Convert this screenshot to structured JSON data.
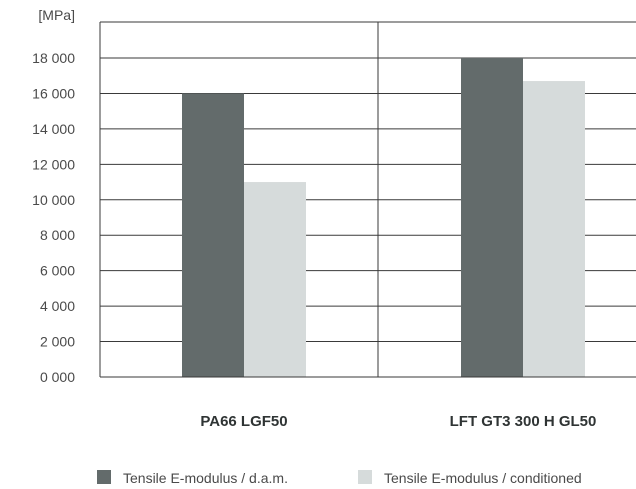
{
  "chart_data": {
    "type": "bar",
    "unit_label": "[MPa]",
    "categories": [
      "PA66 LGF50",
      "LFT GT3 300 H GL50"
    ],
    "series": [
      {
        "name": "Tensile E-modulus / d.a.m.",
        "color": "#636b6b",
        "values": [
          16000,
          18000
        ]
      },
      {
        "name": "Tensile E-modulus / conditioned",
        "color": "#d6dbdb",
        "values": [
          11000,
          16700
        ]
      }
    ],
    "ylim": [
      0,
      20000
    ],
    "y_ticks": [
      0,
      2000,
      4000,
      6000,
      8000,
      10000,
      12000,
      14000,
      16000,
      18000
    ],
    "y_tick_labels": [
      "0 000",
      "2 000",
      "4 000",
      "6 000",
      "8 000",
      "10 000",
      "12 000",
      "14 000",
      "16 000",
      "18 000"
    ],
    "grid": true,
    "legend_position": "bottom"
  }
}
